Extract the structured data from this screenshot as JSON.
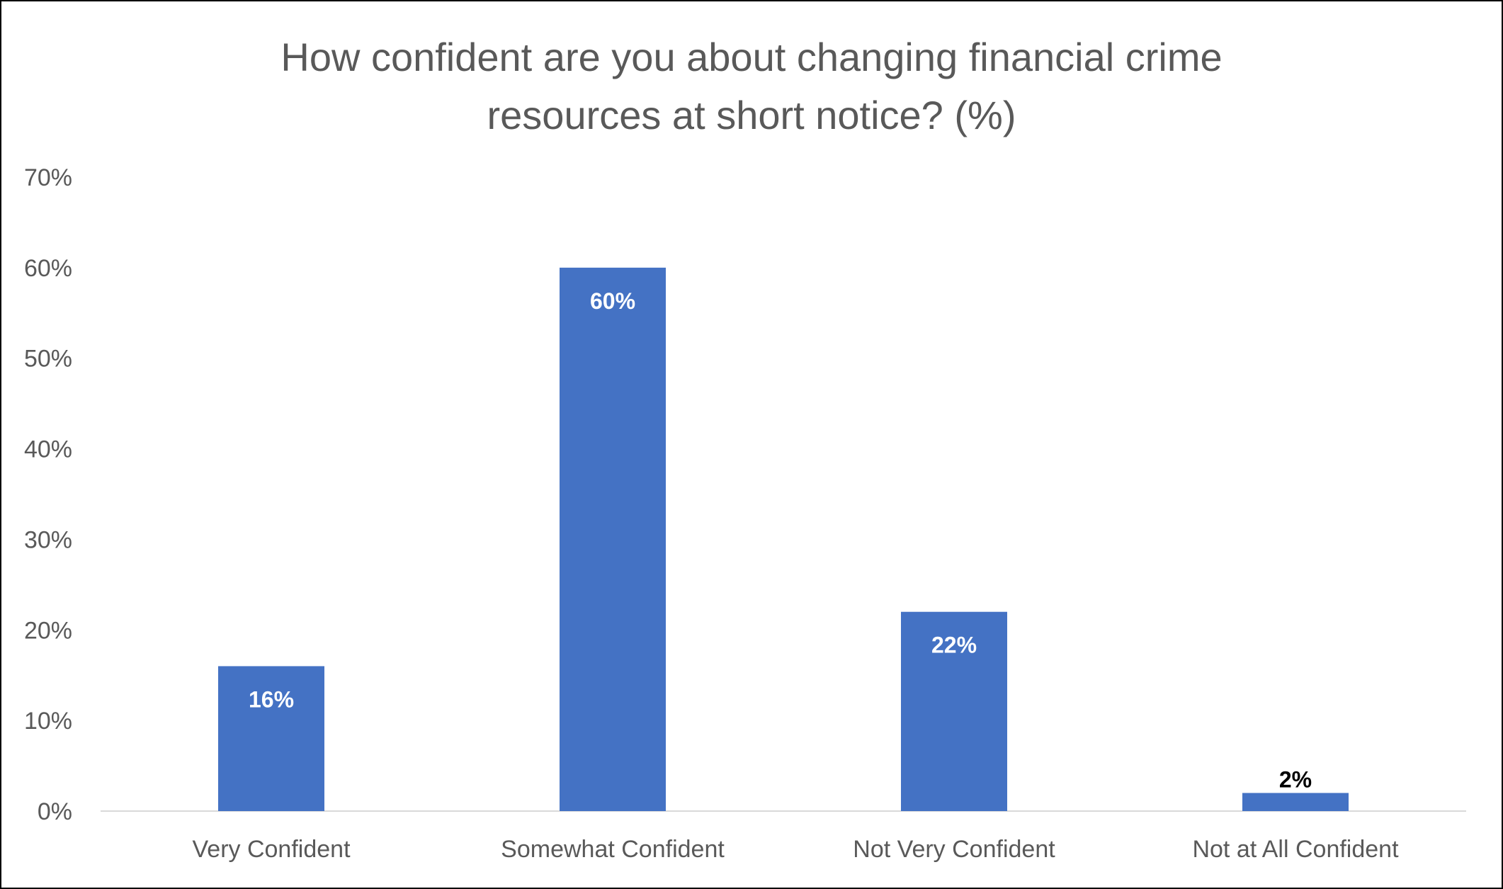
{
  "chart_data": {
    "type": "bar",
    "title_lines": [
      "How confident are you about changing financial crime",
      "resources at short notice? (%)"
    ],
    "categories": [
      "Very Confident",
      "Somewhat Confident",
      "Not Very Confident",
      "Not at All Confident"
    ],
    "values": [
      16,
      60,
      22,
      2
    ],
    "data_labels": [
      "16%",
      "60%",
      "22%",
      "2%"
    ],
    "ylim": [
      0,
      70
    ],
    "yticks": [
      0,
      10,
      20,
      30,
      40,
      50,
      60,
      70
    ],
    "ytick_labels": [
      "0%",
      "10%",
      "20%",
      "30%",
      "40%",
      "50%",
      "60%",
      "70%"
    ],
    "grid": false,
    "legend": "none",
    "bar_color": "#4472C4",
    "label_inside_color": "#FFFFFF",
    "label_outside_color": "#000000",
    "axis_line_color": "#D9D9D9"
  }
}
